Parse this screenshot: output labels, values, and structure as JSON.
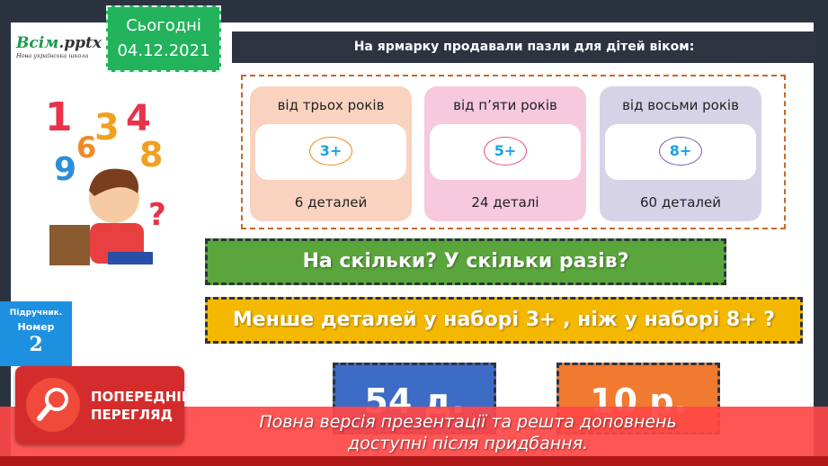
{
  "logo": {
    "brand": "Всім",
    "ext": ".pptx",
    "tagline": "Нова українська школа"
  },
  "date": {
    "label": "Сьогодні",
    "value": "04.12.2021"
  },
  "title": "На ярмарку продавали пазли для дітей віком:",
  "cards": [
    {
      "age": "від трьох років",
      "badge": "3+",
      "pieces": "6 деталей",
      "bg": "#f9d3c0",
      "ring": "#f08a24"
    },
    {
      "age": "від п’яти років",
      "badge": "5+",
      "pieces": "24 деталі",
      "bg": "#f6c9dd",
      "ring": "#e8508e"
    },
    {
      "age": "від восьми років",
      "badge": "8+",
      "pieces": "60 деталей",
      "bg": "#d6d3e8",
      "ring": "#7b62b8"
    }
  ],
  "question1": "На скільки? У скільки разів?",
  "question2": "Менше деталей у наборі 3+ , ніж у наборі 8+ ?",
  "textbook": {
    "label": "Підручник.",
    "number_label": "Номер",
    "number": "2"
  },
  "answers": [
    "54 д.",
    "10 р."
  ],
  "preview": {
    "title_line1": "ПОПЕРЕДНІЙ",
    "title_line2": "ПЕРЕГЛЯД"
  },
  "banner": {
    "line1": "Повна версія презентації та решта доповнень",
    "line2": "доступні після придбання."
  }
}
